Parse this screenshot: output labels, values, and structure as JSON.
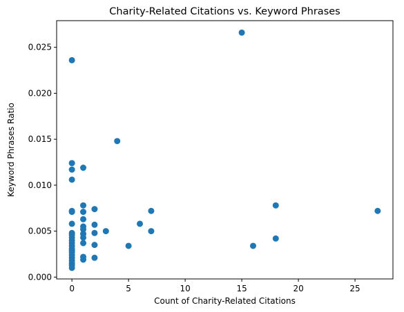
{
  "chart_data": {
    "type": "scatter",
    "title": "Charity-Related Citations vs. Keyword Phrases",
    "xlabel": "Count of Charity-Related Citations",
    "ylabel": "Keyword Phrases Ratio",
    "xlim": [
      -1.35,
      28.35
    ],
    "ylim": [
      -0.0002,
      0.0279
    ],
    "xticks": [
      0,
      5,
      10,
      15,
      20,
      25
    ],
    "xtick_labels": [
      "0",
      "5",
      "10",
      "15",
      "20",
      "25"
    ],
    "yticks": [
      0.0,
      0.005,
      0.01,
      0.015,
      0.02,
      0.025
    ],
    "ytick_labels": [
      "0.000",
      "0.005",
      "0.010",
      "0.015",
      "0.020",
      "0.025"
    ],
    "grid": false,
    "marker_color": "#1f77b4",
    "points": [
      {
        "x": 0,
        "y": 0.0236
      },
      {
        "x": 0,
        "y": 0.0124
      },
      {
        "x": 0,
        "y": 0.0117
      },
      {
        "x": 0,
        "y": 0.0106
      },
      {
        "x": 0,
        "y": 0.0072
      },
      {
        "x": 0,
        "y": 0.0071
      },
      {
        "x": 0,
        "y": 0.0058
      },
      {
        "x": 0,
        "y": 0.0048
      },
      {
        "x": 0,
        "y": 0.0046
      },
      {
        "x": 0,
        "y": 0.0043
      },
      {
        "x": 0,
        "y": 0.004
      },
      {
        "x": 0,
        "y": 0.0037
      },
      {
        "x": 0,
        "y": 0.0034
      },
      {
        "x": 0,
        "y": 0.0031
      },
      {
        "x": 0,
        "y": 0.0029
      },
      {
        "x": 0,
        "y": 0.0027
      },
      {
        "x": 0,
        "y": 0.0024
      },
      {
        "x": 0,
        "y": 0.0021
      },
      {
        "x": 0,
        "y": 0.0018
      },
      {
        "x": 0,
        "y": 0.0015
      },
      {
        "x": 0,
        "y": 0.0013
      },
      {
        "x": 0,
        "y": 0.001
      },
      {
        "x": 1,
        "y": 0.0119
      },
      {
        "x": 1,
        "y": 0.0078
      },
      {
        "x": 1,
        "y": 0.0071
      },
      {
        "x": 1,
        "y": 0.0063
      },
      {
        "x": 1,
        "y": 0.0055
      },
      {
        "x": 1,
        "y": 0.0052
      },
      {
        "x": 1,
        "y": 0.0047
      },
      {
        "x": 1,
        "y": 0.0043
      },
      {
        "x": 1,
        "y": 0.0037
      },
      {
        "x": 1,
        "y": 0.0022
      },
      {
        "x": 1,
        "y": 0.0019
      },
      {
        "x": 2,
        "y": 0.0074
      },
      {
        "x": 2,
        "y": 0.0057
      },
      {
        "x": 2,
        "y": 0.0048
      },
      {
        "x": 2,
        "y": 0.0035
      },
      {
        "x": 2,
        "y": 0.0021
      },
      {
        "x": 3,
        "y": 0.005
      },
      {
        "x": 4,
        "y": 0.0148
      },
      {
        "x": 5,
        "y": 0.0034
      },
      {
        "x": 6,
        "y": 0.0058
      },
      {
        "x": 7,
        "y": 0.0072
      },
      {
        "x": 7,
        "y": 0.005
      },
      {
        "x": 15,
        "y": 0.0266
      },
      {
        "x": 16,
        "y": 0.0034
      },
      {
        "x": 18,
        "y": 0.0078
      },
      {
        "x": 18,
        "y": 0.0042
      },
      {
        "x": 27,
        "y": 0.0072
      }
    ]
  }
}
